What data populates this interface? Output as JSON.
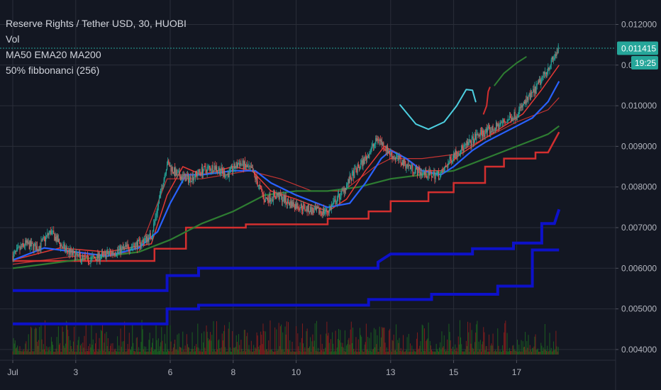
{
  "header": {
    "title": "Reserve Rights / Tether USD, 30, HUOBI",
    "indicators": [
      "Vol",
      "MA50 EMA20 MA200",
      "50% fibbonanci (256)"
    ]
  },
  "price_badge": {
    "price": "0.011415",
    "countdown": "19:25"
  },
  "colors": {
    "background": "#131722",
    "grid": "#2a2e39",
    "candle_up": "#26a69a",
    "candle_down": "#ef5350",
    "vol_up": "#1b5e20",
    "vol_down": "#7f1d1d",
    "ma50": "#2962ff",
    "ema20": "#e53935",
    "ma200": "#2e7d32",
    "fib": "#0d11c9",
    "fib_red": "#d32f2f",
    "badge": "#26a69a",
    "arc_cyan": "#4dd0e1",
    "arc_green": "#2e7d32",
    "arc_red": "#d32f2f"
  },
  "chart_data": {
    "type": "candlestick",
    "title": "Reserve Rights / Tether USD, 30, HUOBI",
    "xlabel": "",
    "ylabel": "",
    "ylim": [
      0.0039,
      0.0125
    ],
    "x_ticks": [
      {
        "label": "Jul",
        "day": 0
      },
      {
        "label": "3",
        "day": 2
      },
      {
        "label": "6",
        "day": 5
      },
      {
        "label": "8",
        "day": 7
      },
      {
        "label": "10",
        "day": 9
      },
      {
        "label": "13",
        "day": 12
      },
      {
        "label": "15",
        "day": 14
      },
      {
        "label": "17",
        "day": 16
      }
    ],
    "y_ticks": [
      "0.012000",
      "0.011000",
      "0.010000",
      "0.009000",
      "0.008000",
      "0.007000",
      "0.006000",
      "0.005000",
      "0.004000"
    ],
    "last_price": 0.011415,
    "close_path": [
      [
        0.0,
        0.0063
      ],
      [
        0.4,
        0.0066
      ],
      [
        0.8,
        0.0065
      ],
      [
        1.2,
        0.0069
      ],
      [
        1.6,
        0.0065
      ],
      [
        2.0,
        0.0063
      ],
      [
        2.4,
        0.0062
      ],
      [
        2.8,
        0.0063
      ],
      [
        3.2,
        0.0064
      ],
      [
        3.6,
        0.0065
      ],
      [
        4.0,
        0.0066
      ],
      [
        4.4,
        0.0068
      ],
      [
        4.6,
        0.0075
      ],
      [
        4.9,
        0.0086
      ],
      [
        5.2,
        0.0083
      ],
      [
        5.6,
        0.0082
      ],
      [
        6.0,
        0.0084
      ],
      [
        6.4,
        0.0085
      ],
      [
        6.8,
        0.0083
      ],
      [
        7.2,
        0.0086
      ],
      [
        7.6,
        0.0084
      ],
      [
        8.0,
        0.0077
      ],
      [
        8.4,
        0.0078
      ],
      [
        8.8,
        0.0076
      ],
      [
        9.2,
        0.0075
      ],
      [
        9.6,
        0.0074
      ],
      [
        10.0,
        0.0074
      ],
      [
        10.4,
        0.0078
      ],
      [
        10.8,
        0.0083
      ],
      [
        11.2,
        0.0087
      ],
      [
        11.6,
        0.0092
      ],
      [
        12.0,
        0.0088
      ],
      [
        12.4,
        0.0086
      ],
      [
        12.8,
        0.0084
      ],
      [
        13.2,
        0.0083
      ],
      [
        13.6,
        0.0083
      ],
      [
        14.0,
        0.0088
      ],
      [
        14.4,
        0.009
      ],
      [
        14.8,
        0.0093
      ],
      [
        15.2,
        0.0094
      ],
      [
        15.6,
        0.0096
      ],
      [
        16.0,
        0.0098
      ],
      [
        16.3,
        0.0101
      ],
      [
        16.6,
        0.0104
      ],
      [
        16.9,
        0.0108
      ],
      [
        17.2,
        0.0112
      ],
      [
        17.35,
        0.011415
      ]
    ],
    "ma50": [
      [
        0.0,
        0.0062
      ],
      [
        1.0,
        0.0065
      ],
      [
        2.0,
        0.0064
      ],
      [
        3.0,
        0.0063
      ],
      [
        4.0,
        0.0065
      ],
      [
        4.6,
        0.0069
      ],
      [
        5.0,
        0.0076
      ],
      [
        5.5,
        0.0083
      ],
      [
        6.0,
        0.0083
      ],
      [
        7.0,
        0.0084
      ],
      [
        7.7,
        0.0084
      ],
      [
        8.2,
        0.0081
      ],
      [
        9.0,
        0.0078
      ],
      [
        10.0,
        0.0075
      ],
      [
        10.7,
        0.0076
      ],
      [
        11.2,
        0.0081
      ],
      [
        11.7,
        0.0087
      ],
      [
        12.0,
        0.0089
      ],
      [
        12.5,
        0.0087
      ],
      [
        13.0,
        0.0084
      ],
      [
        13.6,
        0.0083
      ],
      [
        14.0,
        0.0085
      ],
      [
        14.6,
        0.0089
      ],
      [
        15.0,
        0.0091
      ],
      [
        15.5,
        0.0093
      ],
      [
        16.0,
        0.0095
      ],
      [
        16.5,
        0.0097
      ],
      [
        17.0,
        0.0101
      ],
      [
        17.35,
        0.0106
      ]
    ],
    "ema20": [
      [
        0.0,
        0.0062
      ],
      [
        1.5,
        0.0065
      ],
      [
        3.0,
        0.0064
      ],
      [
        4.4,
        0.0066
      ],
      [
        4.9,
        0.0078
      ],
      [
        5.4,
        0.0085
      ],
      [
        6.0,
        0.0083
      ],
      [
        7.0,
        0.0085
      ],
      [
        7.6,
        0.0084
      ],
      [
        8.2,
        0.0079
      ],
      [
        9.0,
        0.0077
      ],
      [
        10.0,
        0.0074
      ],
      [
        10.6,
        0.0077
      ],
      [
        11.2,
        0.0084
      ],
      [
        11.8,
        0.009
      ],
      [
        12.3,
        0.0088
      ],
      [
        13.0,
        0.0084
      ],
      [
        13.6,
        0.0084
      ],
      [
        14.2,
        0.0088
      ],
      [
        15.0,
        0.0092
      ],
      [
        15.6,
        0.0095
      ],
      [
        16.2,
        0.0098
      ],
      [
        16.8,
        0.0104
      ],
      [
        17.35,
        0.011
      ]
    ],
    "ma200": [
      [
        0.0,
        0.006
      ],
      [
        1.0,
        0.0061
      ],
      [
        2.0,
        0.0062
      ],
      [
        3.0,
        0.0063
      ],
      [
        4.0,
        0.0064
      ],
      [
        5.0,
        0.0067
      ],
      [
        6.0,
        0.0071
      ],
      [
        7.0,
        0.0074
      ],
      [
        8.0,
        0.0078
      ],
      [
        9.0,
        0.0079
      ],
      [
        10.0,
        0.0079
      ],
      [
        11.0,
        0.008
      ],
      [
        12.0,
        0.0082
      ],
      [
        13.0,
        0.0083
      ],
      [
        14.0,
        0.0084
      ],
      [
        15.0,
        0.0087
      ],
      [
        16.0,
        0.009
      ],
      [
        17.0,
        0.0093
      ],
      [
        17.35,
        0.0095
      ]
    ],
    "upper_band": [
      [
        0.0,
        0.0061
      ],
      [
        2.0,
        0.0063
      ],
      [
        4.0,
        0.0064
      ],
      [
        4.9,
        0.0082
      ],
      [
        6.0,
        0.0082
      ],
      [
        7.5,
        0.0084
      ],
      [
        8.5,
        0.0082
      ],
      [
        9.5,
        0.0079
      ],
      [
        10.5,
        0.0079
      ],
      [
        11.5,
        0.0085
      ],
      [
        12.0,
        0.0087
      ],
      [
        13.0,
        0.0087
      ],
      [
        14.0,
        0.0088
      ],
      [
        15.0,
        0.0092
      ],
      [
        16.0,
        0.0096
      ],
      [
        17.0,
        0.0099
      ],
      [
        17.35,
        0.0102
      ]
    ],
    "fib_steps": [
      {
        "name": "fib-top",
        "color": "fib",
        "points": [
          [
            0.0,
            0.00545
          ],
          [
            4.9,
            0.00545
          ],
          [
            4.9,
            0.00582
          ],
          [
            5.9,
            0.00582
          ],
          [
            5.9,
            0.006
          ],
          [
            11.6,
            0.006
          ],
          [
            11.6,
            0.00615
          ],
          [
            12.0,
            0.00635
          ],
          [
            14.6,
            0.00635
          ],
          [
            14.6,
            0.00648
          ],
          [
            15.9,
            0.00648
          ],
          [
            15.9,
            0.00662
          ],
          [
            16.8,
            0.00662
          ],
          [
            16.8,
            0.0071
          ],
          [
            17.2,
            0.0071
          ],
          [
            17.35,
            0.00745
          ]
        ]
      },
      {
        "name": "fib-bottom",
        "color": "fib",
        "points": [
          [
            0.0,
            0.00463
          ],
          [
            4.9,
            0.00463
          ],
          [
            4.9,
            0.005
          ],
          [
            5.9,
            0.005
          ],
          [
            5.9,
            0.00509
          ],
          [
            11.3,
            0.00509
          ],
          [
            11.3,
            0.00523
          ],
          [
            13.3,
            0.00523
          ],
          [
            13.3,
            0.00536
          ],
          [
            15.4,
            0.00536
          ],
          [
            15.4,
            0.00556
          ],
          [
            16.5,
            0.00556
          ],
          [
            16.5,
            0.00645
          ],
          [
            17.35,
            0.00645
          ]
        ]
      },
      {
        "name": "fib-red",
        "color": "fib_red",
        "points": [
          [
            0.0,
            0.00618
          ],
          [
            4.5,
            0.00618
          ],
          [
            4.5,
            0.00648
          ],
          [
            5.5,
            0.00648
          ],
          [
            5.5,
            0.007
          ],
          [
            7.4,
            0.007
          ],
          [
            7.4,
            0.00708
          ],
          [
            10.0,
            0.00708
          ],
          [
            10.0,
            0.00722
          ],
          [
            11.3,
            0.00722
          ],
          [
            11.3,
            0.0074
          ],
          [
            12.0,
            0.0074
          ],
          [
            12.0,
            0.00765
          ],
          [
            13.2,
            0.00765
          ],
          [
            13.2,
            0.00787
          ],
          [
            14.0,
            0.00787
          ],
          [
            14.0,
            0.0081
          ],
          [
            15.0,
            0.0081
          ],
          [
            15.0,
            0.0085
          ],
          [
            15.6,
            0.0085
          ],
          [
            15.6,
            0.0087
          ],
          [
            16.6,
            0.0087
          ],
          [
            16.6,
            0.00885
          ],
          [
            17.0,
            0.00885
          ],
          [
            17.35,
            0.00935
          ]
        ]
      }
    ],
    "drawings": [
      {
        "name": "cyan-arc",
        "color": "arc_cyan",
        "points": [
          [
            12.3,
            0.01002
          ],
          [
            12.8,
            0.00955
          ],
          [
            13.2,
            0.00942
          ],
          [
            13.7,
            0.0096
          ],
          [
            14.1,
            0.01
          ],
          [
            14.4,
            0.0104
          ],
          [
            14.6,
            0.01038
          ],
          [
            14.7,
            0.0101
          ]
        ]
      },
      {
        "name": "red-arc",
        "color": "arc_red",
        "points": [
          [
            14.95,
            0.0098
          ],
          [
            15.05,
            0.01
          ],
          [
            15.1,
            0.01035
          ],
          [
            15.15,
            0.01045
          ]
        ]
      },
      {
        "name": "green-arc",
        "color": "arc_green",
        "points": [
          [
            15.3,
            0.0105
          ],
          [
            15.6,
            0.0108
          ],
          [
            16.0,
            0.01105
          ],
          [
            16.3,
            0.0112
          ]
        ]
      }
    ]
  }
}
